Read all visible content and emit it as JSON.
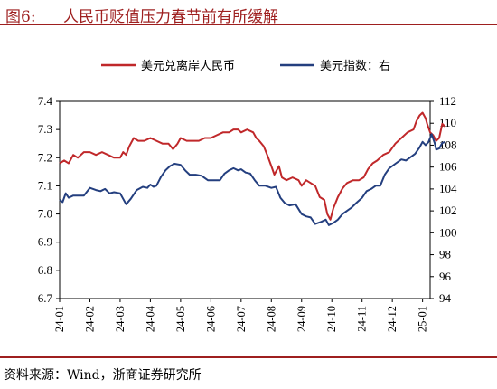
{
  "figure": {
    "number": "图6:",
    "title": "人民币贬值压力春节前有所缓解"
  },
  "source": "资料来源：Wind，浙商证券研究所",
  "chart_data": {
    "type": "line",
    "title": "",
    "x_ticks": [
      "24-01",
      "24-02",
      "24-03",
      "24-04",
      "24-05",
      "24-06",
      "24-07",
      "24-08",
      "24-09",
      "24-10",
      "24-11",
      "24-12",
      "25-01"
    ],
    "y_left": {
      "lim": [
        6.7,
        7.4
      ],
      "ticks": [
        "6.7",
        "6.8",
        "6.9",
        "7.0",
        "7.1",
        "7.2",
        "7.3",
        "7.4"
      ]
    },
    "y_right": {
      "lim": [
        94,
        112
      ],
      "ticks": [
        "94",
        "96",
        "98",
        "100",
        "102",
        "104",
        "106",
        "108",
        "110",
        "112"
      ]
    },
    "legend_position": "top",
    "grid": false,
    "series": [
      {
        "name": "美元兑离岸人民币",
        "axis": "left",
        "color": "#c0282a",
        "points": [
          [
            0,
            7.18
          ],
          [
            0.15,
            7.19
          ],
          [
            0.3,
            7.18
          ],
          [
            0.45,
            7.21
          ],
          [
            0.6,
            7.2
          ],
          [
            0.8,
            7.22
          ],
          [
            1.0,
            7.22
          ],
          [
            1.2,
            7.21
          ],
          [
            1.4,
            7.22
          ],
          [
            1.6,
            7.21
          ],
          [
            1.8,
            7.2
          ],
          [
            2.0,
            7.2
          ],
          [
            2.1,
            7.22
          ],
          [
            2.2,
            7.21
          ],
          [
            2.3,
            7.24
          ],
          [
            2.45,
            7.27
          ],
          [
            2.6,
            7.26
          ],
          [
            2.8,
            7.26
          ],
          [
            3.0,
            7.27
          ],
          [
            3.2,
            7.26
          ],
          [
            3.4,
            7.25
          ],
          [
            3.6,
            7.25
          ],
          [
            3.75,
            7.23
          ],
          [
            3.9,
            7.25
          ],
          [
            4.0,
            7.27
          ],
          [
            4.2,
            7.26
          ],
          [
            4.4,
            7.26
          ],
          [
            4.6,
            7.26
          ],
          [
            4.8,
            7.27
          ],
          [
            5.0,
            7.27
          ],
          [
            5.2,
            7.28
          ],
          [
            5.4,
            7.29
          ],
          [
            5.6,
            7.29
          ],
          [
            5.75,
            7.3
          ],
          [
            5.9,
            7.3
          ],
          [
            6.0,
            7.29
          ],
          [
            6.2,
            7.3
          ],
          [
            6.4,
            7.29
          ],
          [
            6.5,
            7.27
          ],
          [
            6.6,
            7.26
          ],
          [
            6.75,
            7.24
          ],
          [
            6.9,
            7.2
          ],
          [
            7.0,
            7.17
          ],
          [
            7.1,
            7.14
          ],
          [
            7.25,
            7.17
          ],
          [
            7.35,
            7.13
          ],
          [
            7.5,
            7.12
          ],
          [
            7.7,
            7.13
          ],
          [
            7.9,
            7.12
          ],
          [
            8.0,
            7.1
          ],
          [
            8.15,
            7.12
          ],
          [
            8.3,
            7.11
          ],
          [
            8.45,
            7.1
          ],
          [
            8.6,
            7.06
          ],
          [
            8.75,
            7.05
          ],
          [
            8.85,
            7.0
          ],
          [
            8.95,
            6.98
          ],
          [
            9.05,
            7.02
          ],
          [
            9.2,
            7.06
          ],
          [
            9.35,
            7.09
          ],
          [
            9.5,
            7.11
          ],
          [
            9.7,
            7.12
          ],
          [
            9.9,
            7.12
          ],
          [
            10.05,
            7.13
          ],
          [
            10.2,
            7.16
          ],
          [
            10.35,
            7.18
          ],
          [
            10.5,
            7.19
          ],
          [
            10.7,
            7.21
          ],
          [
            10.9,
            7.22
          ],
          [
            11.1,
            7.25
          ],
          [
            11.3,
            7.27
          ],
          [
            11.5,
            7.29
          ],
          [
            11.7,
            7.3
          ],
          [
            11.8,
            7.33
          ],
          [
            11.9,
            7.35
          ],
          [
            12.0,
            7.36
          ],
          [
            12.1,
            7.34
          ],
          [
            12.15,
            7.32
          ],
          [
            12.25,
            7.29
          ],
          [
            12.35,
            7.28
          ],
          [
            12.45,
            7.26
          ],
          [
            12.55,
            7.27
          ],
          [
            12.65,
            7.32
          ],
          [
            12.75,
            7.31
          ]
        ]
      },
      {
        "name": "美元指数：右",
        "axis": "right",
        "color": "#243f7f",
        "points": [
          [
            0,
            103.0
          ],
          [
            0.1,
            102.8
          ],
          [
            0.2,
            103.6
          ],
          [
            0.3,
            103.2
          ],
          [
            0.45,
            103.4
          ],
          [
            0.6,
            103.4
          ],
          [
            0.8,
            103.4
          ],
          [
            1.0,
            104.1
          ],
          [
            1.2,
            103.9
          ],
          [
            1.35,
            103.8
          ],
          [
            1.5,
            104.0
          ],
          [
            1.65,
            103.6
          ],
          [
            1.8,
            103.7
          ],
          [
            2.0,
            103.6
          ],
          [
            2.2,
            102.6
          ],
          [
            2.35,
            103.1
          ],
          [
            2.55,
            103.9
          ],
          [
            2.75,
            104.2
          ],
          [
            2.9,
            104.1
          ],
          [
            3.0,
            104.4
          ],
          [
            3.1,
            104.2
          ],
          [
            3.2,
            104.3
          ],
          [
            3.35,
            105.1
          ],
          [
            3.5,
            105.7
          ],
          [
            3.65,
            106.1
          ],
          [
            3.8,
            106.3
          ],
          [
            4.0,
            106.2
          ],
          [
            4.15,
            105.7
          ],
          [
            4.3,
            105.3
          ],
          [
            4.5,
            105.3
          ],
          [
            4.7,
            105.2
          ],
          [
            4.9,
            104.8
          ],
          [
            5.1,
            104.8
          ],
          [
            5.3,
            104.8
          ],
          [
            5.45,
            105.4
          ],
          [
            5.6,
            105.7
          ],
          [
            5.75,
            105.9
          ],
          [
            5.9,
            105.7
          ],
          [
            6.0,
            105.8
          ],
          [
            6.15,
            105.5
          ],
          [
            6.3,
            105.4
          ],
          [
            6.45,
            104.8
          ],
          [
            6.6,
            104.3
          ],
          [
            6.8,
            104.3
          ],
          [
            7.0,
            104.1
          ],
          [
            7.15,
            104.2
          ],
          [
            7.3,
            103.2
          ],
          [
            7.45,
            102.7
          ],
          [
            7.6,
            102.5
          ],
          [
            7.8,
            102.6
          ],
          [
            8.0,
            101.7
          ],
          [
            8.15,
            101.5
          ],
          [
            8.3,
            101.4
          ],
          [
            8.45,
            100.8
          ],
          [
            8.65,
            101.0
          ],
          [
            8.8,
            101.2
          ],
          [
            8.9,
            100.7
          ],
          [
            9.05,
            100.9
          ],
          [
            9.2,
            101.2
          ],
          [
            9.35,
            101.7
          ],
          [
            9.5,
            102.0
          ],
          [
            9.65,
            102.3
          ],
          [
            9.8,
            102.7
          ],
          [
            10.0,
            103.2
          ],
          [
            10.15,
            103.8
          ],
          [
            10.3,
            104.0
          ],
          [
            10.45,
            104.3
          ],
          [
            10.6,
            104.3
          ],
          [
            10.75,
            105.3
          ],
          [
            10.9,
            105.9
          ],
          [
            11.1,
            106.3
          ],
          [
            11.3,
            106.7
          ],
          [
            11.45,
            106.6
          ],
          [
            11.6,
            106.9
          ],
          [
            11.75,
            107.2
          ],
          [
            11.9,
            107.8
          ],
          [
            12.0,
            108.3
          ],
          [
            12.1,
            108.0
          ],
          [
            12.2,
            108.3
          ],
          [
            12.3,
            109.0
          ],
          [
            12.4,
            108.2
          ],
          [
            12.45,
            107.6
          ],
          [
            12.55,
            107.7
          ],
          [
            12.65,
            108.2
          ],
          [
            12.75,
            108.3
          ]
        ]
      }
    ]
  }
}
